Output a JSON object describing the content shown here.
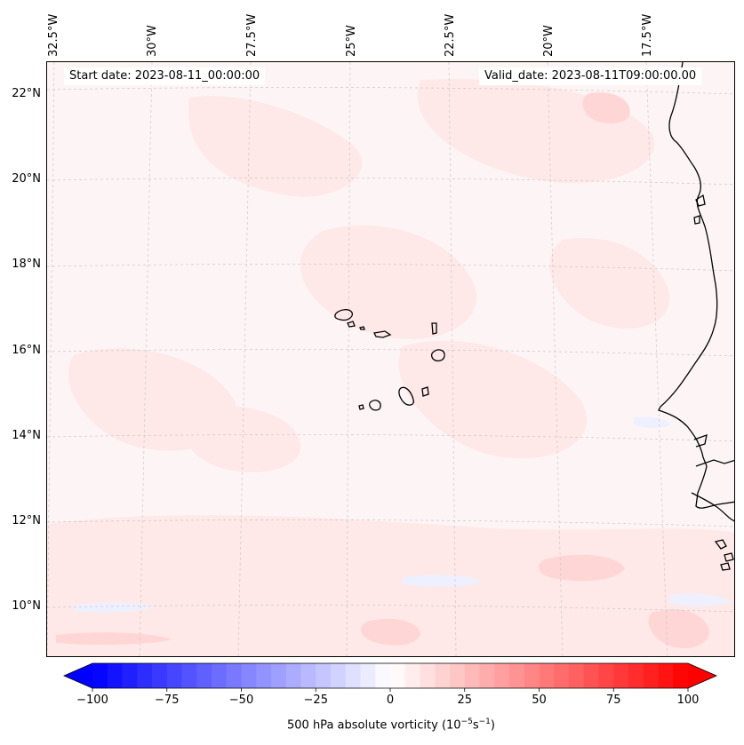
{
  "map": {
    "start_date": "Start date: 2023-08-11_00:00:00",
    "valid_date": "Valid_date: 2023-08-11T09:00:00.00",
    "longitude_labels": [
      "32.5°W",
      "30°W",
      "27.5°W",
      "25°W",
      "22.5°W",
      "20°W",
      "17.5°W"
    ],
    "latitude_labels": [
      "22°N",
      "20°N",
      "18°N",
      "16°N",
      "14°N",
      "12°N",
      "10°N"
    ],
    "field_name": "500 hPa absolute vorticity",
    "colors": {
      "background": "#fdf5f5",
      "weak_positive": "#ffe8e8",
      "moderate_positive": "#ffd6d6",
      "weak_negative": "#eef0ff",
      "coast": "#000000",
      "grid": "#bbbbbb"
    }
  },
  "colorbar": {
    "ticks": [
      "−100",
      "−75",
      "−50",
      "−25",
      "0",
      "25",
      "50",
      "75",
      "100"
    ],
    "min": -100,
    "max": 100,
    "step": 5,
    "label_prefix": "500 hPa absolute vorticity (10",
    "label_exp1": "−5",
    "label_mid": "s",
    "label_exp2": "−1",
    "label_suffix": ")"
  }
}
